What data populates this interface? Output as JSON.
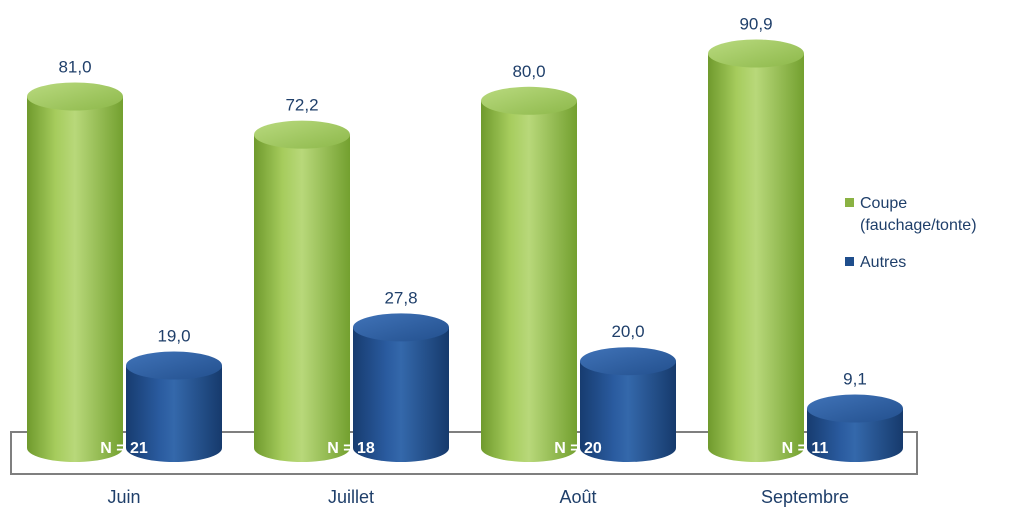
{
  "chart_data": {
    "type": "bar",
    "title": "",
    "xlabel": "",
    "ylabel": "",
    "categories": [
      "Juin",
      "Juillet",
      "Août",
      "Septembre"
    ],
    "series": [
      {
        "name": "Coupe (fauchage/tonte)",
        "values": [
          81.0,
          72.2,
          80.0,
          90.9
        ],
        "labels": [
          "81,0",
          "72,2",
          "80,0",
          "90,9"
        ],
        "color": "#8ab243"
      },
      {
        "name": "Autres",
        "values": [
          19.0,
          27.8,
          20.0,
          9.1
        ],
        "labels": [
          "19,0",
          "27,8",
          "20,0",
          "9,1"
        ],
        "color": "#1f4e8c"
      }
    ],
    "sample_sizes": [
      "N = 21",
      "N = 18",
      "N = 20",
      "N = 11"
    ],
    "ylim": [
      0,
      100
    ],
    "grid": false,
    "legend_position": "right",
    "bar_style": "3d-cylinder"
  },
  "legend": {
    "items": [
      {
        "label": "Coupe (fauchage/tonte)",
        "color": "#8ab243"
      },
      {
        "label": "Autres",
        "color": "#1f4e8c"
      }
    ]
  }
}
